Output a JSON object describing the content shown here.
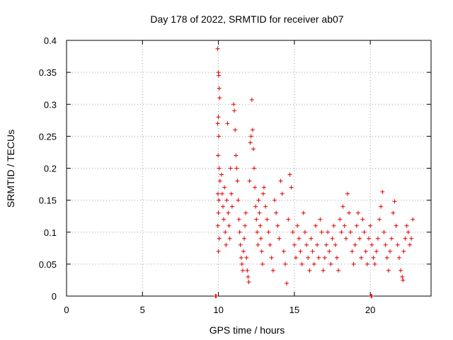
{
  "chart_data": {
    "type": "scatter",
    "title": "Day 178 of 2022, SRMTID for receiver ab07",
    "xlabel": "GPS time / hours",
    "ylabel": "SRMTID / TECUs",
    "xlim": [
      0,
      24
    ],
    "ylim": [
      0,
      0.4
    ],
    "xticks": [
      0,
      5,
      10,
      15,
      20
    ],
    "xtick_labels": [
      "0",
      "5",
      "10",
      "15",
      "20"
    ],
    "yticks": [
      0,
      0.05,
      0.1,
      0.15,
      0.2,
      0.25,
      0.3,
      0.35,
      0.4
    ],
    "ytick_labels": [
      "0",
      "0.05",
      "0.1",
      "0.15",
      "0.2",
      "0.25",
      "0.3",
      "0.35",
      "0.4"
    ],
    "grid": true,
    "marker": "+",
    "color": "#e00000",
    "series": [
      {
        "name": "SRMTID",
        "points": [
          [
            9.8,
            0.0
          ],
          [
            9.85,
            0.0
          ],
          [
            20.05,
            0.0
          ],
          [
            20.1,
            0.0
          ],
          [
            9.95,
            0.387
          ],
          [
            10.0,
            0.35
          ],
          [
            10.02,
            0.345
          ],
          [
            10.05,
            0.325
          ],
          [
            10.08,
            0.31
          ],
          [
            10.0,
            0.28
          ],
          [
            9.95,
            0.27
          ],
          [
            10.02,
            0.25
          ],
          [
            9.98,
            0.22
          ],
          [
            10.05,
            0.2
          ],
          [
            10.1,
            0.18
          ],
          [
            9.97,
            0.16
          ],
          [
            10.03,
            0.15
          ],
          [
            10.0,
            0.13
          ],
          [
            9.96,
            0.11
          ],
          [
            10.05,
            0.09
          ],
          [
            10.0,
            0.07
          ],
          [
            10.2,
            0.19
          ],
          [
            10.25,
            0.16
          ],
          [
            10.3,
            0.14
          ],
          [
            10.35,
            0.12
          ],
          [
            10.4,
            0.17
          ],
          [
            10.45,
            0.1
          ],
          [
            10.5,
            0.08
          ],
          [
            10.55,
            0.15
          ],
          [
            10.6,
            0.27
          ],
          [
            10.65,
            0.13
          ],
          [
            10.7,
            0.11
          ],
          [
            10.75,
            0.09
          ],
          [
            10.8,
            0.2
          ],
          [
            10.85,
            0.16
          ],
          [
            10.9,
            0.14
          ],
          [
            11.0,
            0.3
          ],
          [
            11.05,
            0.29
          ],
          [
            11.1,
            0.26
          ],
          [
            11.15,
            0.22
          ],
          [
            11.2,
            0.2
          ],
          [
            11.25,
            0.18
          ],
          [
            11.3,
            0.15
          ],
          [
            11.35,
            0.12
          ],
          [
            11.4,
            0.1
          ],
          [
            11.45,
            0.08
          ],
          [
            11.5,
            0.06
          ],
          [
            11.55,
            0.05
          ],
          [
            11.6,
            0.04
          ],
          [
            11.65,
            0.07
          ],
          [
            11.7,
            0.09
          ],
          [
            11.75,
            0.11
          ],
          [
            11.8,
            0.13
          ],
          [
            11.85,
            0.06
          ],
          [
            11.9,
            0.04
          ],
          [
            11.95,
            0.03
          ],
          [
            12.0,
            0.022
          ],
          [
            12.05,
            0.18
          ],
          [
            12.1,
            0.24
          ],
          [
            12.15,
            0.25
          ],
          [
            12.2,
            0.307
          ],
          [
            12.25,
            0.26
          ],
          [
            12.3,
            0.23
          ],
          [
            12.35,
            0.2
          ],
          [
            12.4,
            0.17
          ],
          [
            12.45,
            0.14
          ],
          [
            12.5,
            0.12
          ],
          [
            12.55,
            0.1
          ],
          [
            12.6,
            0.08
          ],
          [
            12.65,
            0.15
          ],
          [
            12.7,
            0.13
          ],
          [
            12.75,
            0.11
          ],
          [
            12.8,
            0.09
          ],
          [
            12.85,
            0.07
          ],
          [
            12.9,
            0.05
          ],
          [
            12.95,
            0.16
          ],
          [
            13.0,
            0.17
          ],
          [
            13.1,
            0.14
          ],
          [
            13.2,
            0.12
          ],
          [
            13.3,
            0.1
          ],
          [
            13.4,
            0.08
          ],
          [
            13.5,
            0.06
          ],
          [
            13.6,
            0.04
          ],
          [
            13.7,
            0.15
          ],
          [
            13.8,
            0.13
          ],
          [
            13.9,
            0.11
          ],
          [
            14.0,
            0.09
          ],
          [
            14.1,
            0.18
          ],
          [
            14.2,
            0.16
          ],
          [
            14.3,
            0.07
          ],
          [
            14.4,
            0.05
          ],
          [
            14.5,
            0.02
          ],
          [
            14.6,
            0.12
          ],
          [
            14.7,
            0.19
          ],
          [
            14.8,
            0.17
          ],
          [
            14.9,
            0.1
          ],
          [
            15.0,
            0.08
          ],
          [
            15.1,
            0.06
          ],
          [
            15.2,
            0.11
          ],
          [
            15.3,
            0.09
          ],
          [
            15.4,
            0.07
          ],
          [
            15.5,
            0.05
          ],
          [
            15.6,
            0.13
          ],
          [
            15.7,
            0.1
          ],
          [
            15.8,
            0.08
          ],
          [
            15.9,
            0.06
          ],
          [
            16.0,
            0.04
          ],
          [
            16.1,
            0.09
          ],
          [
            16.2,
            0.07
          ],
          [
            16.3,
            0.05
          ],
          [
            16.4,
            0.11
          ],
          [
            16.5,
            0.08
          ],
          [
            16.6,
            0.06
          ],
          [
            16.7,
            0.12
          ],
          [
            16.8,
            0.1
          ],
          [
            16.9,
            0.04
          ],
          [
            17.0,
            0.06
          ],
          [
            17.1,
            0.08
          ],
          [
            17.2,
            0.1
          ],
          [
            17.3,
            0.07
          ],
          [
            17.4,
            0.05
          ],
          [
            17.5,
            0.09
          ],
          [
            17.6,
            0.11
          ],
          [
            17.7,
            0.08
          ],
          [
            17.8,
            0.06
          ],
          [
            17.9,
            0.04
          ],
          [
            18.0,
            0.12
          ],
          [
            18.1,
            0.1
          ],
          [
            18.2,
            0.14
          ],
          [
            18.3,
            0.11
          ],
          [
            18.4,
            0.09
          ],
          [
            18.5,
            0.16
          ],
          [
            18.6,
            0.13
          ],
          [
            18.7,
            0.1
          ],
          [
            18.8,
            0.07
          ],
          [
            18.9,
            0.05
          ],
          [
            19.0,
            0.08
          ],
          [
            19.1,
            0.11
          ],
          [
            19.2,
            0.13
          ],
          [
            19.3,
            0.09
          ],
          [
            19.4,
            0.06
          ],
          [
            19.5,
            0.12
          ],
          [
            19.6,
            0.1
          ],
          [
            19.7,
            0.07
          ],
          [
            19.8,
            0.05
          ],
          [
            19.9,
            0.09
          ],
          [
            20.0,
            0.11
          ],
          [
            20.1,
            0.08
          ],
          [
            20.2,
            0.06
          ],
          [
            20.3,
            0.05
          ],
          [
            20.4,
            0.07
          ],
          [
            20.5,
            0.09
          ],
          [
            20.6,
            0.12
          ],
          [
            20.7,
            0.14
          ],
          [
            20.8,
            0.163
          ],
          [
            20.9,
            0.1
          ],
          [
            21.0,
            0.08
          ],
          [
            21.1,
            0.06
          ],
          [
            21.2,
            0.04
          ],
          [
            21.3,
            0.07
          ],
          [
            21.4,
            0.09
          ],
          [
            21.5,
            0.13
          ],
          [
            21.6,
            0.148
          ],
          [
            21.7,
            0.11
          ],
          [
            21.8,
            0.08
          ],
          [
            21.9,
            0.06
          ],
          [
            22.0,
            0.04
          ],
          [
            22.1,
            0.03
          ],
          [
            22.15,
            0.025
          ],
          [
            22.2,
            0.07
          ],
          [
            22.3,
            0.09
          ],
          [
            22.4,
            0.11
          ],
          [
            22.5,
            0.1
          ],
          [
            22.6,
            0.08
          ],
          [
            22.7,
            0.09
          ],
          [
            22.8,
            0.12
          ]
        ]
      }
    ]
  }
}
